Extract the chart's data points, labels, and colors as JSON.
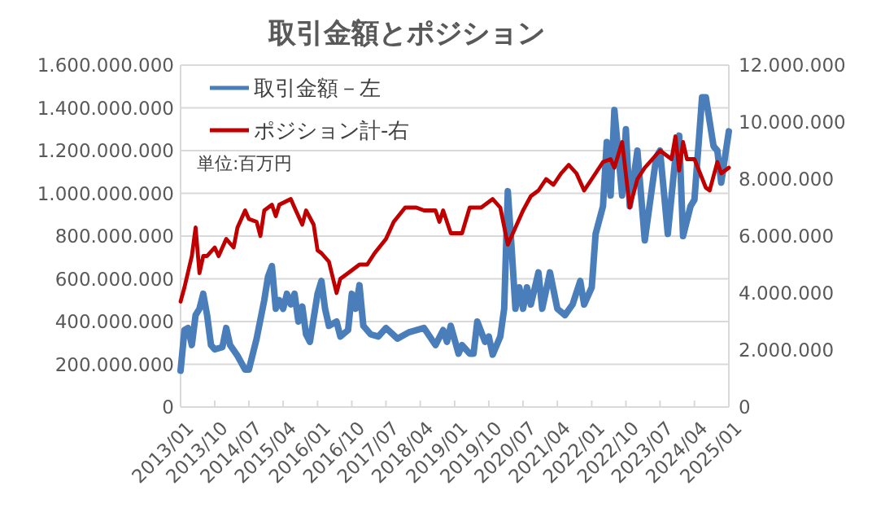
{
  "chart_data": {
    "type": "line",
    "title": "取引金額とポジション",
    "annotations": [
      "単位:百万円"
    ],
    "xlim": [
      "2013-01",
      "2025-01"
    ],
    "xticks": [
      {
        "value": "2013-01",
        "label": "2013/01"
      },
      {
        "value": "2013-10",
        "label": "2013/10"
      },
      {
        "value": "2014-07",
        "label": "2014/07"
      },
      {
        "value": "2015-04",
        "label": "2015/04"
      },
      {
        "value": "2016-01",
        "label": "2016/01"
      },
      {
        "value": "2016-10",
        "label": "2016/10"
      },
      {
        "value": "2017-07",
        "label": "2017/07"
      },
      {
        "value": "2018-04",
        "label": "2018/04"
      },
      {
        "value": "2019-01",
        "label": "2019/01"
      },
      {
        "value": "2019-10",
        "label": "2019/10"
      },
      {
        "value": "2020-07",
        "label": "2020/07"
      },
      {
        "value": "2021-04",
        "label": "2021/04"
      },
      {
        "value": "2022-01",
        "label": "2022/01"
      },
      {
        "value": "2022-10",
        "label": "2022/10"
      },
      {
        "value": "2023-07",
        "label": "2023/07"
      },
      {
        "value": "2024-04",
        "label": "2024/04"
      },
      {
        "value": "2025-01",
        "label": "2025/01"
      }
    ],
    "ylim": [
      0,
      1600000000
    ],
    "yticks": [
      0,
      {
        "value": 200000000,
        "label": "200.000.000"
      },
      {
        "value": 400000000,
        "label": "400.000.000"
      },
      {
        "value": 600000000,
        "label": "600.000.000"
      },
      {
        "value": 800000000,
        "label": "800.000.000"
      },
      {
        "value": 1000000000,
        "label": "1.000.000.000"
      },
      {
        "value": 1200000000,
        "label": "1.200.000.000"
      },
      {
        "value": 1400000000,
        "label": "1.400.000.000"
      },
      {
        "value": 1600000000,
        "label": "1.600.000.000"
      }
    ],
    "y2lim": [
      0,
      12000000
    ],
    "y2ticks": [
      0,
      {
        "value": 2000000,
        "label": "2.000.000"
      },
      {
        "value": 4000000,
        "label": "4.000.000"
      },
      {
        "value": 6000000,
        "label": "6.000.000"
      },
      {
        "value": 8000000,
        "label": "8.000.000"
      },
      {
        "value": 10000000,
        "label": "10.000.000"
      },
      {
        "value": 12000000,
        "label": "12.000.000"
      }
    ],
    "grid": "y",
    "legend": "top left",
    "marker": "none",
    "line_style": "solid",
    "series": [
      {
        "name": "取引金額－左",
        "color": "#4a7ebb",
        "x": [
          "2013-01",
          "2013-02",
          "2013-03",
          "2013-04",
          "2013-05",
          "2013-06",
          "2013-07",
          "2013-08",
          "2013-09",
          "2013-10",
          "2013-12",
          "2014-01",
          "2014-02",
          "2014-04",
          "2014-06",
          "2014-07",
          "2014-09",
          "2014-11",
          "2014-12",
          "2015-01",
          "2015-02",
          "2015-03",
          "2015-04",
          "2015-05",
          "2015-06",
          "2015-07",
          "2015-08",
          "2015-09",
          "2015-10",
          "2015-11",
          "2016-01",
          "2016-02",
          "2016-03",
          "2016-04",
          "2016-06",
          "2016-07",
          "2016-09",
          "2016-10",
          "2016-11",
          "2016-12",
          "2017-01",
          "2017-03",
          "2017-05",
          "2017-07",
          "2017-10",
          "2018-01",
          "2018-05",
          "2018-08",
          "2018-10",
          "2018-11",
          "2018-12",
          "2019-02",
          "2019-03",
          "2019-05",
          "2019-06",
          "2019-07",
          "2019-09",
          "2019-10",
          "2019-11",
          "2020-01",
          "2020-02",
          "2020-03",
          "2020-04",
          "2020-05",
          "2020-06",
          "2020-07",
          "2020-08",
          "2020-09",
          "2020-11",
          "2020-12",
          "2021-02",
          "2021-04",
          "2021-06",
          "2021-08",
          "2021-10",
          "2021-11",
          "2022-01",
          "2022-02",
          "2022-04",
          "2022-05",
          "2022-06",
          "2022-07",
          "2022-09",
          "2022-10",
          "2022-11",
          "2023-01",
          "2023-03",
          "2023-05",
          "2023-06",
          "2023-07",
          "2023-09",
          "2023-11",
          "2023-12",
          "2024-01",
          "2024-03",
          "2024-04",
          "2024-06",
          "2024-07",
          "2024-09",
          "2024-10",
          "2024-11",
          "2025-01"
        ],
        "values": [
          170000000,
          360000000,
          370000000,
          290000000,
          430000000,
          460000000,
          530000000,
          430000000,
          290000000,
          270000000,
          280000000,
          370000000,
          290000000,
          240000000,
          175000000,
          175000000,
          320000000,
          500000000,
          610000000,
          660000000,
          460000000,
          500000000,
          460000000,
          530000000,
          480000000,
          530000000,
          400000000,
          470000000,
          340000000,
          305000000,
          530000000,
          590000000,
          460000000,
          380000000,
          400000000,
          330000000,
          360000000,
          530000000,
          460000000,
          570000000,
          380000000,
          340000000,
          330000000,
          370000000,
          320000000,
          350000000,
          370000000,
          290000000,
          360000000,
          305000000,
          380000000,
          250000000,
          290000000,
          250000000,
          250000000,
          400000000,
          305000000,
          330000000,
          245000000,
          330000000,
          460000000,
          1010000000,
          740000000,
          460000000,
          560000000,
          460000000,
          560000000,
          480000000,
          630000000,
          460000000,
          630000000,
          460000000,
          430000000,
          480000000,
          590000000,
          480000000,
          560000000,
          810000000,
          940000000,
          1240000000,
          990000000,
          1390000000,
          990000000,
          1300000000,
          940000000,
          1200000000,
          780000000,
          1040000000,
          1170000000,
          1200000000,
          810000000,
          1170000000,
          1270000000,
          800000000,
          940000000,
          970000000,
          1450000000,
          1450000000,
          1220000000,
          1200000000,
          1050000000,
          1290000000
        ]
      },
      {
        "name": "ポジション計-右",
        "color": "#c00000",
        "axis": "y2",
        "x": [
          "2013-01",
          "2013-02",
          "2013-04",
          "2013-05",
          "2013-06",
          "2013-07",
          "2013-08",
          "2013-10",
          "2013-11",
          "2014-01",
          "2014-03",
          "2014-04",
          "2014-06",
          "2014-07",
          "2014-09",
          "2014-10",
          "2014-11",
          "2015-01",
          "2015-02",
          "2015-03",
          "2015-06",
          "2015-07",
          "2015-09",
          "2015-10",
          "2015-12",
          "2016-01",
          "2016-02",
          "2016-04",
          "2016-06",
          "2016-07",
          "2016-09",
          "2016-12",
          "2017-02",
          "2017-04",
          "2017-07",
          "2017-09",
          "2017-12",
          "2018-03",
          "2018-05",
          "2018-08",
          "2018-09",
          "2018-10",
          "2018-12",
          "2019-03",
          "2019-05",
          "2019-08",
          "2019-11",
          "2020-01",
          "2020-03",
          "2020-05",
          "2020-07",
          "2020-09",
          "2020-11",
          "2021-01",
          "2021-03",
          "2021-05",
          "2021-07",
          "2021-09",
          "2021-11",
          "2022-01",
          "2022-04",
          "2022-06",
          "2022-07",
          "2022-09",
          "2022-11",
          "2023-01",
          "2023-03",
          "2023-05",
          "2023-07",
          "2023-10",
          "2023-11",
          "2023-12",
          "2024-01",
          "2024-02",
          "2024-04",
          "2024-07",
          "2024-08",
          "2024-10",
          "2024-11",
          "2025-01"
        ],
        "values": [
          3700000,
          4200000,
          5300000,
          6300000,
          4700000,
          5300000,
          5300000,
          5600000,
          5300000,
          5900000,
          5600000,
          6300000,
          6900000,
          6600000,
          6500000,
          6000000,
          6900000,
          7100000,
          6700000,
          7100000,
          7300000,
          7000000,
          6400000,
          6900000,
          6400000,
          5500000,
          5400000,
          5100000,
          4000000,
          4500000,
          4700000,
          5000000,
          5000000,
          5400000,
          5900000,
          6500000,
          7000000,
          7000000,
          6900000,
          6900000,
          6500000,
          6900000,
          6100000,
          6100000,
          7000000,
          7000000,
          7300000,
          7000000,
          5700000,
          6300000,
          6900000,
          7400000,
          7600000,
          8000000,
          7800000,
          8200000,
          8500000,
          8200000,
          7600000,
          8000000,
          8600000,
          8700000,
          8400000,
          9300000,
          7000000,
          8000000,
          8400000,
          8700000,
          9000000,
          8700000,
          9500000,
          8300000,
          9300000,
          8700000,
          8700000,
          7700000,
          7600000,
          8600000,
          8200000,
          8400000
        ]
      }
    ]
  }
}
